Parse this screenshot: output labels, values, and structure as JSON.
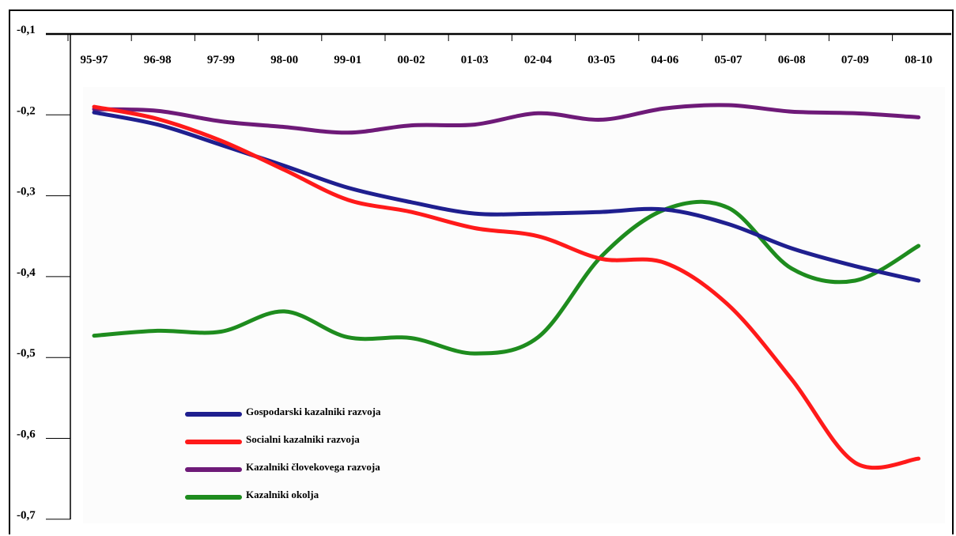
{
  "chart_data": {
    "type": "line",
    "categories": [
      "95-97",
      "96-98",
      "97-99",
      "98-00",
      "99-01",
      "00-02",
      "01-03",
      "02-04",
      "03-05",
      "04-06",
      "05-07",
      "06-08",
      "07-09",
      "08-10"
    ],
    "y_ticks": [
      "-0,1",
      "-0,2",
      "-0,3",
      "-0,4",
      "-0,5",
      "-0,6",
      "-0,7"
    ],
    "ylim": [
      -0.7,
      -0.1
    ],
    "x_axis_position": "top",
    "grid": false,
    "legend_position": "bottom-left",
    "series": [
      {
        "name": "Gospodarski kazalniki razvoja",
        "color": "#1f1f8f",
        "values": [
          -0.197,
          -0.212,
          -0.237,
          -0.263,
          -0.29,
          -0.308,
          -0.322,
          -0.322,
          -0.32,
          -0.317,
          -0.335,
          -0.365,
          -0.387,
          -0.405
        ]
      },
      {
        "name": "Socialni kazalniki razvoja",
        "color": "#ff1a1a",
        "values": [
          -0.19,
          -0.205,
          -0.232,
          -0.268,
          -0.305,
          -0.32,
          -0.34,
          -0.35,
          -0.378,
          -0.383,
          -0.435,
          -0.527,
          -0.63,
          -0.625
        ]
      },
      {
        "name": "Kazalniki človekovega razvoja",
        "color": "#6e1a78",
        "values": [
          -0.193,
          -0.195,
          -0.208,
          -0.215,
          -0.222,
          -0.213,
          -0.212,
          -0.198,
          -0.206,
          -0.192,
          -0.188,
          -0.196,
          -0.198,
          -0.203
        ]
      },
      {
        "name": "Kazalniki okolja",
        "color": "#1e8c1e",
        "values": [
          -0.473,
          -0.467,
          -0.468,
          -0.443,
          -0.475,
          -0.476,
          -0.495,
          -0.475,
          -0.375,
          -0.317,
          -0.315,
          -0.39,
          -0.405,
          -0.362
        ]
      }
    ]
  }
}
